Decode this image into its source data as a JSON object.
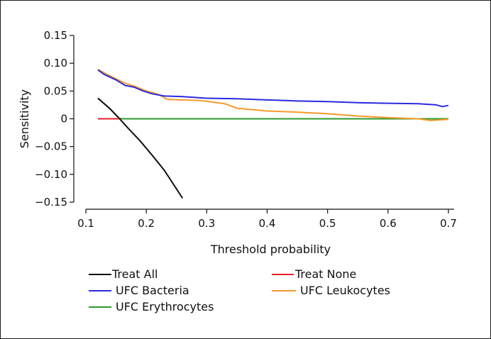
{
  "chart_data": {
    "type": "line",
    "title": "",
    "xlabel": "Threshold probability",
    "ylabel": "Sensitivity",
    "xlim": [
      0.1,
      0.7
    ],
    "ylim": [
      -0.15,
      0.15
    ],
    "xticks": [
      0.1,
      0.2,
      0.3,
      0.4,
      0.5,
      0.6,
      0.7
    ],
    "xtick_labels": [
      "0.1",
      "0.2",
      "0.3",
      "0.4",
      "0.5",
      "0.6",
      "0.7"
    ],
    "yticks": [
      0.15,
      0.1,
      0.05,
      0,
      -0.05,
      -0.1,
      -0.15
    ],
    "ytick_labels": [
      "0.15",
      "0.10",
      "0.05",
      "0",
      "−0.05",
      "−0.10",
      "−0.15"
    ],
    "grid": false,
    "legend_position": "bottom",
    "series": [
      {
        "name": "Treat All",
        "color": "#111111",
        "x": [
          0.12,
          0.14,
          0.155,
          0.17,
          0.19,
          0.21,
          0.23,
          0.26
        ],
        "y": [
          0.037,
          0.018,
          0.001,
          -0.017,
          -0.04,
          -0.066,
          -0.093,
          -0.143
        ]
      },
      {
        "name": "Treat None",
        "color": "#e8202a",
        "x": [
          0.12,
          0.155
        ],
        "y": [
          0,
          0
        ]
      },
      {
        "name": "UFC Bacteria",
        "color": "#2a2ae0",
        "x": [
          0.12,
          0.13,
          0.15,
          0.165,
          0.18,
          0.195,
          0.21,
          0.23,
          0.26,
          0.3,
          0.35,
          0.4,
          0.45,
          0.5,
          0.55,
          0.6,
          0.65,
          0.68,
          0.69,
          0.7
        ],
        "y": [
          0.088,
          0.08,
          0.07,
          0.06,
          0.057,
          0.05,
          0.045,
          0.041,
          0.04,
          0.037,
          0.036,
          0.034,
          0.032,
          0.031,
          0.029,
          0.028,
          0.027,
          0.025,
          0.022,
          0.024
        ]
      },
      {
        "name": "UFC Leukocytes",
        "color": "#f79a2c",
        "x": [
          0.12,
          0.135,
          0.15,
          0.165,
          0.18,
          0.2,
          0.22,
          0.235,
          0.26,
          0.29,
          0.33,
          0.35,
          0.4,
          0.45,
          0.5,
          0.55,
          0.6,
          0.65,
          0.67,
          0.7
        ],
        "y": [
          0.089,
          0.08,
          0.072,
          0.064,
          0.059,
          0.05,
          0.044,
          0.035,
          0.034,
          0.033,
          0.027,
          0.019,
          0.014,
          0.012,
          0.009,
          0.005,
          0.002,
          0.0,
          -0.003,
          -0.001
        ]
      },
      {
        "name": "UFC Erythrocytes",
        "color": "#2e9a2e",
        "x": [
          0.12,
          0.14,
          0.155,
          0.16,
          0.2,
          0.3,
          0.4,
          0.5,
          0.6,
          0.7
        ],
        "y": [
          0.037,
          0.018,
          0.001,
          0.0,
          0.0,
          0.0,
          0.0,
          0.0,
          0.0,
          0.0
        ]
      }
    ]
  }
}
